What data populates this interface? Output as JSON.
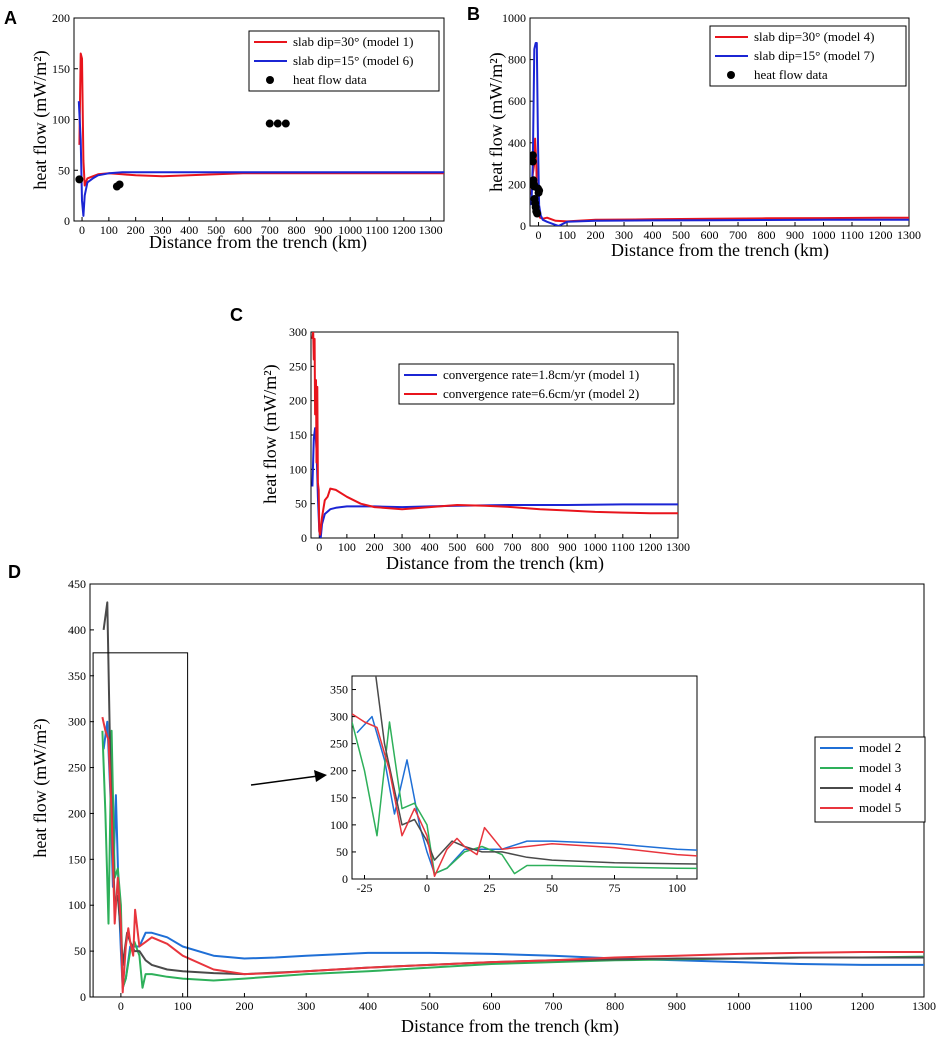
{
  "chart_data": [
    {
      "panel": "A",
      "type": "line",
      "xlabel": "Distance from the trench (km)",
      "ylabel": "heat flow (mW/m²)",
      "xlim": [
        -30,
        1350
      ],
      "ylim": [
        0,
        200
      ],
      "xticks": [
        0,
        100,
        200,
        300,
        400,
        500,
        600,
        700,
        800,
        900,
        1000,
        1100,
        1200,
        1300
      ],
      "yticks": [
        0,
        50,
        100,
        150,
        200
      ],
      "legend_position": "top-right",
      "series": [
        {
          "name": "slab dip=30° (model 1)",
          "color": "#e8141c",
          "x": [
            -10,
            -5,
            0,
            5,
            10,
            20,
            40,
            60,
            100,
            150,
            200,
            300,
            400,
            500,
            600,
            700,
            800,
            1000,
            1200,
            1350
          ],
          "y": [
            75,
            165,
            160,
            60,
            35,
            42,
            44,
            46,
            47,
            46,
            45,
            44,
            45,
            46,
            47,
            47,
            47,
            47,
            47,
            47
          ]
        },
        {
          "name": "slab dip=15° (model 6)",
          "color": "#1b25d4",
          "x": [
            -12,
            -5,
            0,
            5,
            10,
            20,
            40,
            60,
            100,
            150,
            200,
            300,
            400,
            600,
            800,
            1000,
            1200,
            1350
          ],
          "y": [
            118,
            80,
            20,
            5,
            25,
            38,
            42,
            45,
            47,
            48,
            48,
            48,
            48,
            48,
            48,
            48,
            48,
            48
          ]
        }
      ],
      "points": {
        "name": "heat flow data",
        "x": [
          -10,
          130,
          140,
          700,
          730,
          760
        ],
        "y": [
          41,
          34,
          36,
          96,
          96,
          96
        ]
      }
    },
    {
      "panel": "B",
      "type": "line",
      "xlabel": "Distance from the trench (km)",
      "ylabel": "heat flow (mW/m²)",
      "xlim": [
        -30,
        1300
      ],
      "ylim": [
        0,
        1000
      ],
      "xticks": [
        0,
        100,
        200,
        300,
        400,
        500,
        600,
        700,
        800,
        900,
        1000,
        1100,
        1200,
        1300
      ],
      "yticks": [
        0,
        200,
        400,
        600,
        800,
        1000
      ],
      "legend_position": "top-right",
      "series": [
        {
          "name": "slab dip=30° (model 4)",
          "color": "#e8141c",
          "x": [
            -25,
            -20,
            -15,
            -12,
            -8,
            -5,
            0,
            5,
            15,
            30,
            60,
            100,
            200,
            400,
            600,
            800,
            1000,
            1200,
            1300
          ],
          "y": [
            150,
            250,
            300,
            420,
            300,
            120,
            60,
            40,
            35,
            40,
            25,
            22,
            30,
            32,
            35,
            37,
            38,
            40,
            40
          ]
        },
        {
          "name": "slab dip=15° (model 7)",
          "color": "#1b25d4",
          "x": [
            -25,
            -20,
            -15,
            -10,
            -6,
            -2,
            2,
            8,
            15,
            30,
            50,
            70,
            100,
            200,
            400,
            600,
            800,
            1000,
            1200,
            1300
          ],
          "y": [
            100,
            300,
            850,
            880,
            880,
            400,
            100,
            50,
            30,
            20,
            10,
            0,
            20,
            25,
            27,
            28,
            29,
            30,
            30,
            30
          ]
        }
      ],
      "points": {
        "name": "heat flow data",
        "x": [
          -20,
          -20,
          -18,
          -16,
          -15,
          -14,
          -12,
          -10,
          -8,
          -5,
          -2,
          0,
          2
        ],
        "y": [
          340,
          310,
          220,
          200,
          190,
          130,
          110,
          90,
          70,
          60,
          180,
          160,
          170
        ]
      }
    },
    {
      "panel": "C",
      "type": "line",
      "xlabel": "Distance from the trench (km)",
      "ylabel": "heat flow (mW/m²)",
      "xlim": [
        -30,
        1300
      ],
      "ylim": [
        0,
        300
      ],
      "xticks": [
        0,
        100,
        200,
        300,
        400,
        500,
        600,
        700,
        800,
        900,
        1000,
        1100,
        1200,
        1300
      ],
      "yticks": [
        0,
        50,
        100,
        150,
        200,
        250,
        300
      ],
      "legend_position": "top-right",
      "series": [
        {
          "name": "convergence rate=1.8cm/yr (model 1)",
          "color": "#1b25d4",
          "x": [
            -25,
            -20,
            -15,
            -10,
            -5,
            0,
            5,
            10,
            20,
            40,
            60,
            100,
            200,
            300,
            400,
            500,
            700,
            900,
            1100,
            1300
          ],
          "y": [
            75,
            145,
            160,
            130,
            60,
            10,
            0,
            20,
            35,
            42,
            44,
            46,
            46,
            45,
            46,
            47,
            48,
            48,
            49,
            49
          ]
        },
        {
          "name": "convergence rate=6.6cm/yr (model 2)",
          "color": "#e8141c",
          "x": [
            -25,
            -22,
            -20,
            -17,
            -15,
            -12,
            -10,
            -7,
            -5,
            -2,
            0,
            3,
            10,
            20,
            30,
            40,
            60,
            100,
            150,
            200,
            300,
            400,
            500,
            600,
            700,
            800,
            900,
            1000,
            1100,
            1200,
            1300
          ],
          "y": [
            290,
            300,
            260,
            290,
            180,
            230,
            110,
            220,
            80,
            70,
            10,
            5,
            30,
            55,
            60,
            72,
            70,
            60,
            50,
            45,
            42,
            45,
            48,
            47,
            45,
            42,
            40,
            38,
            37,
            36,
            36
          ]
        }
      ]
    },
    {
      "panel": "D",
      "type": "line",
      "xlabel": "Distance from the trench (km)",
      "ylabel": "heat flow (mW/m²)",
      "xlim": [
        -50,
        1300
      ],
      "ylim": [
        0,
        450
      ],
      "xticks": [
        0,
        100,
        200,
        300,
        400,
        500,
        600,
        700,
        800,
        900,
        1000,
        1100,
        1200,
        1300
      ],
      "yticks": [
        0,
        50,
        100,
        150,
        200,
        250,
        300,
        350,
        400,
        450
      ],
      "legend_position": "right",
      "arrow": true,
      "series": [
        {
          "name": "model 2",
          "color": "#1f6fd6",
          "x": [
            -28,
            -22,
            -17,
            -13,
            -8,
            -3,
            0,
            3,
            8,
            15,
            22,
            30,
            40,
            50,
            75,
            100,
            150,
            200,
            250,
            300,
            400,
            500,
            600,
            700,
            800,
            900,
            1000,
            1100,
            1200,
            1300
          ],
          "y": [
            270,
            300,
            220,
            120,
            220,
            100,
            50,
            10,
            20,
            55,
            55,
            55,
            70,
            70,
            65,
            55,
            45,
            42,
            43,
            45,
            48,
            48,
            47,
            45,
            42,
            40,
            38,
            36,
            35,
            35
          ]
        },
        {
          "name": "model 3",
          "color": "#2eb05a",
          "x": [
            -30,
            -25,
            -20,
            -15,
            -10,
            -5,
            0,
            3,
            8,
            15,
            22,
            30,
            35,
            40,
            50,
            75,
            100,
            150,
            200,
            300,
            400,
            500,
            600,
            700,
            800,
            900,
            1000,
            1100,
            1200,
            1300
          ],
          "y": [
            290,
            200,
            80,
            290,
            130,
            140,
            100,
            10,
            20,
            50,
            60,
            45,
            10,
            25,
            25,
            22,
            20,
            18,
            20,
            25,
            28,
            32,
            36,
            38,
            40,
            41,
            42,
            43,
            43,
            44
          ]
        },
        {
          "name": "model 4",
          "color": "#4a4a4a",
          "x": [
            -28,
            -22,
            -17,
            -10,
            -5,
            0,
            3,
            10,
            15,
            22,
            30,
            40,
            50,
            75,
            100,
            150,
            200,
            300,
            400,
            500,
            600,
            700,
            800,
            900,
            1000,
            1100,
            1200,
            1300
          ],
          "y": [
            400,
            430,
            250,
            100,
            110,
            70,
            35,
            70,
            60,
            50,
            50,
            40,
            35,
            30,
            28,
            26,
            25,
            28,
            32,
            35,
            38,
            40,
            41,
            42,
            42,
            43,
            43,
            43
          ]
        },
        {
          "name": "model 5",
          "color": "#e8353d",
          "x": [
            -30,
            -25,
            -20,
            -15,
            -10,
            -5,
            0,
            3,
            8,
            12,
            15,
            20,
            23,
            30,
            40,
            50,
            75,
            100,
            150,
            200,
            250,
            300,
            400,
            500,
            600,
            700,
            800,
            900,
            1000,
            1100,
            1200,
            1300
          ],
          "y": [
            305,
            290,
            280,
            200,
            80,
            130,
            80,
            5,
            55,
            75,
            60,
            45,
            95,
            55,
            60,
            65,
            58,
            45,
            30,
            25,
            26,
            28,
            32,
            35,
            38,
            40,
            43,
            45,
            47,
            48,
            49,
            49
          ]
        }
      ],
      "inset": {
        "xlim": [
          -30,
          108
        ],
        "ylim": [
          0,
          375
        ],
        "xticks": [
          -25,
          0,
          25,
          50,
          75,
          100
        ],
        "yticks": [
          0,
          50,
          100,
          150,
          200,
          250,
          300,
          350
        ]
      }
    }
  ],
  "labels": {
    "panelA": "A",
    "panelB": "B",
    "panelC": "C",
    "panelD": "D"
  }
}
